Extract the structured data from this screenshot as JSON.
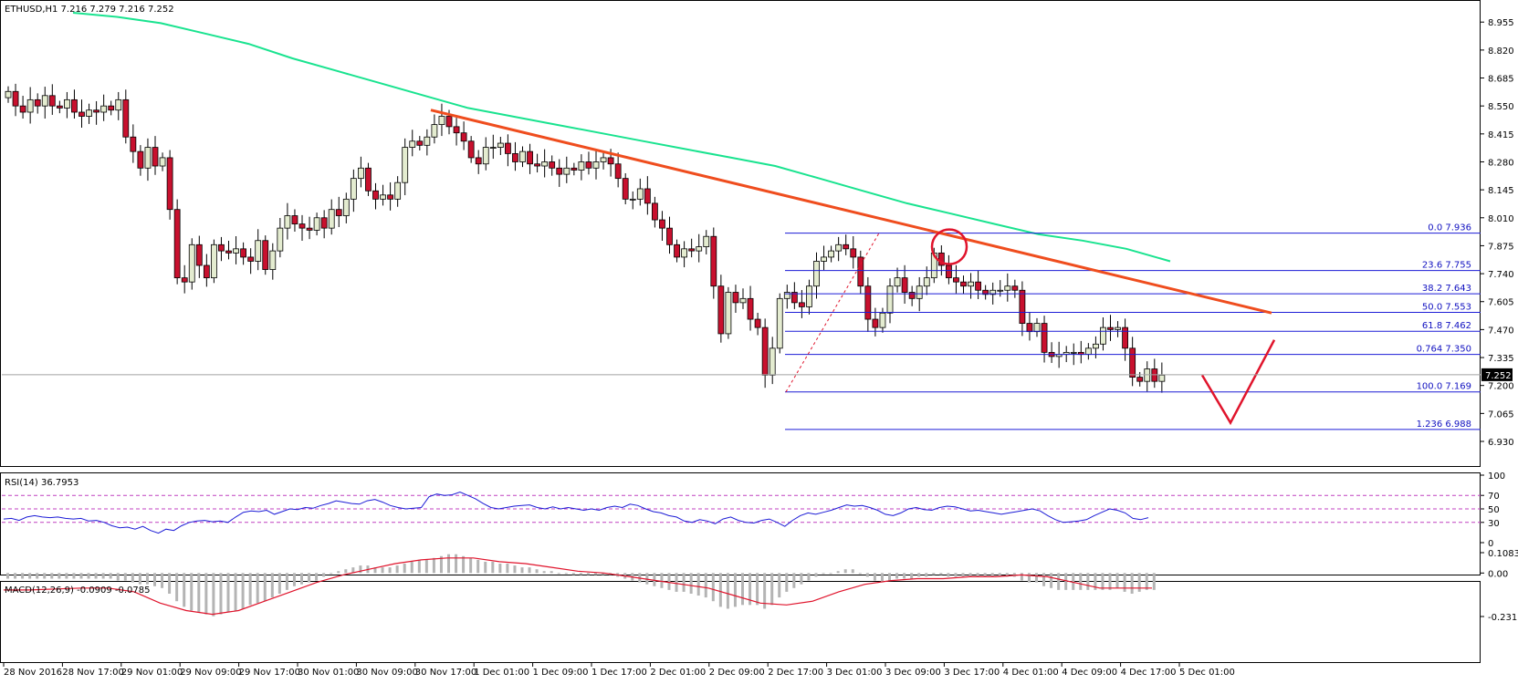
{
  "chart_data": [
    {
      "type": "candlestick",
      "title": "ETHUSD,H1  7.216 7.279 7.216 7.252",
      "symbol": "ETHUSD",
      "timeframe": "H1",
      "ohlc_header": {
        "open": 7.216,
        "high": 7.279,
        "low": 7.216,
        "close": 7.252
      },
      "current_price_label": "7.252",
      "current_price": 7.252,
      "ylim": [
        6.93,
        9.0
      ],
      "y_ticks": [
        "8.955",
        "8.820",
        "8.685",
        "8.550",
        "8.415",
        "8.280",
        "8.145",
        "8.010",
        "7.875",
        "7.740",
        "7.605",
        "7.470",
        "7.335",
        "7.200",
        "7.065",
        "6.930"
      ],
      "x_ticks": [
        "28 Nov 2016",
        "28 Nov 17:00",
        "29 Nov 01:00",
        "29 Nov 09:00",
        "29 Nov 17:00",
        "30 Nov 01:00",
        "30 Nov 09:00",
        "30 Nov 17:00",
        "1 Dec 01:00",
        "1 Dec 09:00",
        "1 Dec 17:00",
        "2 Dec 01:00",
        "2 Dec 09:00",
        "2 Dec 17:00",
        "3 Dec 01:00",
        "3 Dec 09:00",
        "3 Dec 17:00",
        "4 Dec 01:00",
        "4 Dec 09:00",
        "4 Dec 17:00",
        "5 Dec 01:00"
      ],
      "candle_colors": {
        "up": "#e4ecd0",
        "down": "#c8102e",
        "outline": "#000000"
      },
      "candles_close": [
        8.62,
        8.55,
        8.52,
        8.58,
        8.55,
        8.6,
        8.55,
        8.54,
        8.58,
        8.52,
        8.5,
        8.53,
        8.52,
        8.55,
        8.53,
        8.58,
        8.4,
        8.33,
        8.25,
        8.35,
        8.26,
        8.3,
        8.05,
        7.72,
        7.7,
        7.88,
        7.78,
        7.72,
        7.88,
        7.85,
        7.84,
        7.86,
        7.82,
        7.8,
        7.9,
        7.76,
        7.85,
        7.96,
        8.02,
        7.98,
        7.96,
        7.95,
        8.01,
        7.96,
        8.05,
        8.02,
        8.1,
        8.2,
        8.25,
        8.14,
        8.1,
        8.12,
        8.1,
        8.18,
        8.35,
        8.38,
        8.36,
        8.4,
        8.46,
        8.5,
        8.45,
        8.42,
        8.38,
        8.3,
        8.27,
        8.35,
        8.35,
        8.37,
        8.32,
        8.28,
        8.33,
        8.27,
        8.26,
        8.28,
        8.25,
        8.22,
        8.25,
        8.24,
        8.28,
        8.25,
        8.28,
        8.3,
        8.27,
        8.2,
        8.1,
        8.1,
        8.15,
        8.08,
        8.0,
        7.96,
        7.88,
        7.82,
        7.86,
        7.85,
        7.87,
        7.92,
        7.68,
        7.45,
        7.65,
        7.6,
        7.62,
        7.52,
        7.48,
        7.25,
        7.38,
        7.62,
        7.65,
        7.6,
        7.58,
        7.68,
        7.8,
        7.82,
        7.85,
        7.88,
        7.86,
        7.82,
        7.68,
        7.52,
        7.48,
        7.55,
        7.68,
        7.72,
        7.65,
        7.62,
        7.68,
        7.72,
        7.84,
        7.78,
        7.72,
        7.7,
        7.68,
        7.7,
        7.66,
        7.64,
        7.66,
        7.66,
        7.68,
        7.66,
        7.5,
        7.46,
        7.5,
        7.36,
        7.34,
        7.35,
        7.36,
        7.36,
        7.35,
        7.38,
        7.4,
        7.48,
        7.47,
        7.48,
        7.38,
        7.24,
        7.22,
        7.28,
        7.22,
        7.25
      ],
      "series": [
        {
          "name": "MA",
          "color": "#19e38f",
          "values": [
            9.0,
            8.98,
            8.95,
            8.9,
            8.85,
            8.78,
            8.72,
            8.66,
            8.6,
            8.54,
            8.5,
            8.46,
            8.42,
            8.38,
            8.34,
            8.3,
            8.26,
            8.2,
            8.14,
            8.08,
            8.03,
            7.98,
            7.93,
            7.9,
            7.86,
            7.8
          ]
        }
      ],
      "trend_line": {
        "color": "#ef4d1e",
        "from": 8.53,
        "to": 7.55
      },
      "fibonacci": {
        "color": "#1c1cd6",
        "levels": [
          {
            "ratio": "0.0",
            "price": "7.936",
            "value": 7.936
          },
          {
            "ratio": "23.6",
            "price": "7.755",
            "value": 7.755
          },
          {
            "ratio": "38.2",
            "price": "7.643",
            "value": 7.643
          },
          {
            "ratio": "50.0",
            "price": "7.553",
            "value": 7.553
          },
          {
            "ratio": "61.8",
            "price": "7.462",
            "value": 7.462
          },
          {
            "ratio": "0.764",
            "price": "7.350",
            "value": 7.35
          },
          {
            "ratio": "100.0",
            "price": "7.169",
            "value": 7.169
          },
          {
            "ratio": "1.236",
            "price": "6.988",
            "value": 6.988
          }
        ]
      },
      "annotation_circle_color": "#e0142c",
      "annotation_v_color": "#e0142c"
    },
    {
      "type": "line",
      "title": "RSI(14) 36.7953",
      "ylim": [
        0,
        100
      ],
      "y_ticks": [
        "100",
        "70",
        "50",
        "30",
        "0"
      ],
      "levels": [
        70,
        50,
        30
      ],
      "series": [
        {
          "name": "RSI(14)",
          "color": "#1c1cd6",
          "values": [
            35,
            36,
            33,
            38,
            40,
            38,
            37,
            38,
            36,
            35,
            36,
            32,
            33,
            30,
            25,
            22,
            23,
            20,
            24,
            18,
            14,
            20,
            18,
            25,
            30,
            32,
            33,
            31,
            32,
            30,
            38,
            45,
            47,
            46,
            48,
            42,
            46,
            50,
            49,
            52,
            51,
            55,
            58,
            62,
            60,
            58,
            57,
            62,
            64,
            60,
            55,
            52,
            50,
            51,
            52,
            68,
            72,
            70,
            71,
            75,
            70,
            65,
            58,
            52,
            50,
            52,
            54,
            55,
            56,
            52,
            50,
            53,
            50,
            52,
            50,
            48,
            50,
            48,
            52,
            54,
            52,
            57,
            55,
            50,
            46,
            44,
            40,
            38,
            32,
            30,
            34,
            32,
            28,
            35,
            38,
            33,
            30,
            29,
            33,
            35,
            30,
            24,
            33,
            40,
            44,
            42,
            45,
            48,
            52,
            56,
            54,
            55,
            52,
            48,
            42,
            40,
            44,
            50,
            52,
            49,
            48,
            52,
            54,
            53,
            50,
            47,
            48,
            46,
            44,
            42,
            44,
            46,
            48,
            50,
            47,
            40,
            34,
            30,
            31,
            32,
            34,
            40,
            45,
            50,
            48,
            44,
            36,
            34,
            37
          ]
        }
      ]
    },
    {
      "type": "bar",
      "title": "MACD(12,26,9) -0.0909 -0.0785",
      "ylim": [
        -0.2315,
        0.1083
      ],
      "y_ticks": [
        "0.1083",
        "0.00",
        "-0.2315"
      ],
      "series": [
        {
          "name": "MACD",
          "color": "#b4b4b4",
          "values": [
            -0.03,
            -0.03,
            -0.03,
            -0.03,
            -0.03,
            -0.03,
            -0.03,
            -0.03,
            -0.03,
            -0.03,
            -0.03,
            -0.03,
            -0.03,
            -0.03,
            -0.03,
            -0.04,
            -0.04,
            -0.05,
            -0.06,
            -0.06,
            -0.07,
            -0.08,
            -0.11,
            -0.15,
            -0.18,
            -0.2,
            -0.21,
            -0.22,
            -0.23,
            -0.22,
            -0.21,
            -0.2,
            -0.19,
            -0.17,
            -0.16,
            -0.15,
            -0.13,
            -0.11,
            -0.09,
            -0.07,
            -0.06,
            -0.05,
            -0.04,
            -0.02,
            0.0,
            0.01,
            0.02,
            0.03,
            0.04,
            0.04,
            0.03,
            0.03,
            0.03,
            0.04,
            0.05,
            0.06,
            0.07,
            0.07,
            0.08,
            0.09,
            0.1,
            0.1,
            0.09,
            0.08,
            0.07,
            0.06,
            0.06,
            0.05,
            0.05,
            0.04,
            0.03,
            0.03,
            0.02,
            0.01,
            0.01,
            0.0,
            0.0,
            -0.01,
            -0.01,
            -0.01,
            -0.01,
            -0.01,
            -0.01,
            -0.02,
            -0.03,
            -0.04,
            -0.05,
            -0.06,
            -0.07,
            -0.08,
            -0.09,
            -0.1,
            -0.1,
            -0.11,
            -0.12,
            -0.13,
            -0.15,
            -0.18,
            -0.19,
            -0.18,
            -0.17,
            -0.17,
            -0.17,
            -0.19,
            -0.17,
            -0.13,
            -0.1,
            -0.08,
            -0.06,
            -0.04,
            -0.02,
            0.0,
            0.0,
            0.01,
            0.02,
            0.02,
            0.0,
            -0.02,
            -0.04,
            -0.05,
            -0.04,
            -0.03,
            -0.03,
            -0.03,
            -0.02,
            -0.02,
            -0.01,
            -0.01,
            -0.02,
            -0.02,
            -0.02,
            -0.02,
            -0.02,
            -0.02,
            -0.02,
            -0.02,
            -0.02,
            -0.02,
            -0.04,
            -0.05,
            -0.05,
            -0.07,
            -0.08,
            -0.09,
            -0.09,
            -0.09,
            -0.09,
            -0.09,
            -0.09,
            -0.09,
            -0.09,
            -0.08,
            -0.1,
            -0.11,
            -0.1,
            -0.09,
            -0.09
          ]
        },
        {
          "name": "Signal",
          "color": "#e0142c",
          "values": [
            -0.09,
            -0.09,
            -0.085,
            -0.08,
            -0.08,
            -0.1,
            -0.16,
            -0.2,
            -0.22,
            -0.2,
            -0.15,
            -0.1,
            -0.05,
            -0.01,
            0.02,
            0.05,
            0.07,
            0.08,
            0.08,
            0.06,
            0.05,
            0.03,
            0.01,
            0.0,
            -0.02,
            -0.04,
            -0.06,
            -0.08,
            -0.12,
            -0.16,
            -0.17,
            -0.15,
            -0.1,
            -0.06,
            -0.04,
            -0.03,
            -0.03,
            -0.02,
            -0.02,
            -0.01,
            -0.02,
            -0.05,
            -0.08,
            -0.08,
            -0.08
          ]
        }
      ]
    }
  ]
}
